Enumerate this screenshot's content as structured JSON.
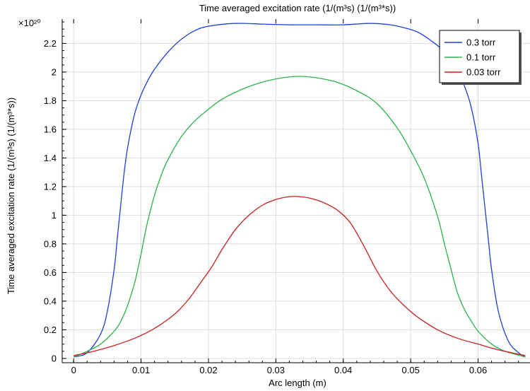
{
  "chart_data": {
    "type": "line",
    "title": "Time averaged excitation rate (1/(m³s) (1/(m³*s))",
    "xlabel": "Arc length (m)",
    "ylabel": "Time averaged excitation rate (1/(m³s) (1/(m³*s))",
    "y_multiplier": "×10²⁰",
    "xlim": [
      -0.0017,
      0.0677
    ],
    "ylim": [
      -0.03,
      2.37
    ],
    "x_ticks": [
      0,
      0.01,
      0.02,
      0.03,
      0.04,
      0.05,
      0.06
    ],
    "x_tick_labels": [
      "0",
      "0.01",
      "0.02",
      "0.03",
      "0.04",
      "0.05",
      "0.06"
    ],
    "y_ticks": [
      0,
      0.2,
      0.4,
      0.6,
      0.8,
      1,
      1.2,
      1.4,
      1.6,
      1.8,
      2,
      2.2
    ],
    "y_tick_labels": [
      "0",
      "0.2",
      "0.4",
      "0.6",
      "0.8",
      "1",
      "1.2",
      "1.4",
      "1.6",
      "1.8",
      "2",
      "2.2"
    ],
    "grid": true,
    "legend_position": "top-right",
    "series": [
      {
        "name": "0.3 torr",
        "color": "#1f3fdb",
        "x": [
          0,
          0.002,
          0.004,
          0.005,
          0.006,
          0.0065,
          0.007,
          0.0075,
          0.008,
          0.009,
          0.01,
          0.011,
          0.012,
          0.014,
          0.016,
          0.018,
          0.02,
          0.024,
          0.028,
          0.032,
          0.0335,
          0.036,
          0.04,
          0.044,
          0.047,
          0.049,
          0.051,
          0.053,
          0.055,
          0.057,
          0.058,
          0.059,
          0.06,
          0.0605,
          0.061,
          0.0615,
          0.062,
          0.063,
          0.0645,
          0.066,
          0.067
        ],
        "y": [
          0.01,
          0.04,
          0.17,
          0.33,
          0.62,
          0.85,
          1.08,
          1.3,
          1.47,
          1.7,
          1.84,
          1.94,
          2.02,
          2.14,
          2.23,
          2.29,
          2.32,
          2.34,
          2.335,
          2.33,
          2.33,
          2.33,
          2.33,
          2.34,
          2.33,
          2.31,
          2.28,
          2.22,
          2.14,
          2.0,
          1.9,
          1.75,
          1.5,
          1.28,
          1.06,
          0.84,
          0.62,
          0.33,
          0.12,
          0.04,
          0.01
        ]
      },
      {
        "name": "0.1 torr",
        "color": "#2bb24a",
        "x": [
          0,
          0.002,
          0.004,
          0.006,
          0.007,
          0.008,
          0.009,
          0.0095,
          0.01,
          0.0105,
          0.011,
          0.012,
          0.013,
          0.014,
          0.016,
          0.018,
          0.02,
          0.022,
          0.025,
          0.028,
          0.031,
          0.0335,
          0.036,
          0.039,
          0.042,
          0.045,
          0.048,
          0.05,
          0.052,
          0.054,
          0.055,
          0.056,
          0.0565,
          0.057,
          0.058,
          0.059,
          0.06,
          0.062,
          0.064,
          0.067
        ],
        "y": [
          0.01,
          0.05,
          0.1,
          0.19,
          0.26,
          0.37,
          0.52,
          0.62,
          0.73,
          0.85,
          0.96,
          1.14,
          1.28,
          1.39,
          1.55,
          1.66,
          1.74,
          1.81,
          1.88,
          1.93,
          1.96,
          1.97,
          1.96,
          1.93,
          1.87,
          1.78,
          1.61,
          1.45,
          1.26,
          0.99,
          0.8,
          0.62,
          0.53,
          0.45,
          0.34,
          0.26,
          0.19,
          0.1,
          0.05,
          0.01
        ]
      },
      {
        "name": "0.03 torr",
        "color": "#cc1f1f",
        "x": [
          0,
          0.003,
          0.006,
          0.009,
          0.012,
          0.015,
          0.017,
          0.019,
          0.0205,
          0.022,
          0.024,
          0.026,
          0.028,
          0.03,
          0.032,
          0.0335,
          0.035,
          0.037,
          0.039,
          0.041,
          0.043,
          0.045,
          0.047,
          0.049,
          0.051,
          0.054,
          0.057,
          0.06,
          0.063,
          0.067
        ],
        "y": [
          0.02,
          0.05,
          0.09,
          0.14,
          0.21,
          0.31,
          0.41,
          0.54,
          0.64,
          0.76,
          0.9,
          1.0,
          1.07,
          1.11,
          1.13,
          1.13,
          1.12,
          1.09,
          1.04,
          0.95,
          0.79,
          0.61,
          0.47,
          0.37,
          0.29,
          0.2,
          0.14,
          0.1,
          0.06,
          0.02
        ]
      }
    ]
  }
}
